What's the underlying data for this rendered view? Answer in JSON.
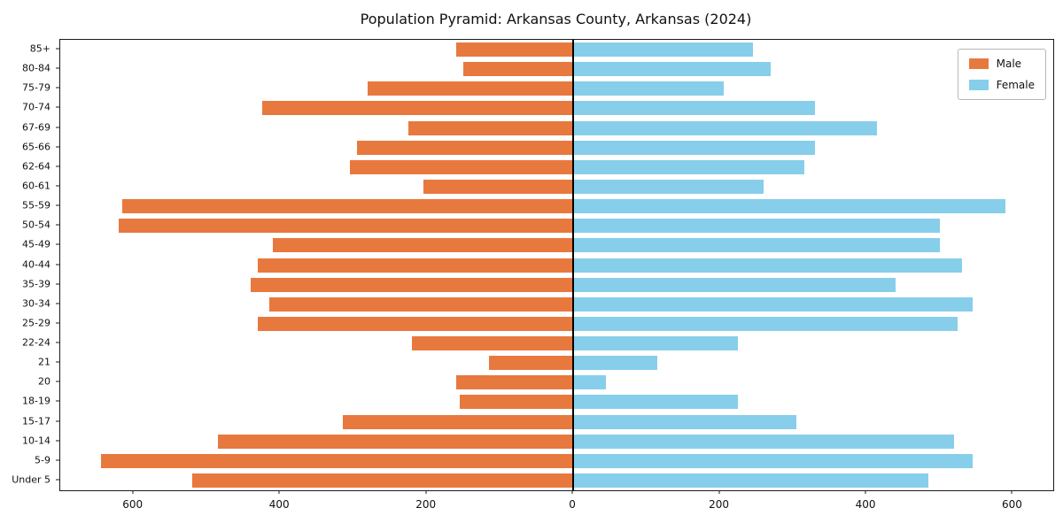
{
  "title": "Population Pyramid: Arkansas County, Arkansas (2024)",
  "legend": {
    "male": "Male",
    "female": "Female"
  },
  "colors": {
    "male": "#e8793e",
    "female": "#87ceeb",
    "axis": "#1a1a1a",
    "background": "#ffffff"
  },
  "chart_data": {
    "type": "bar",
    "subtype": "population-pyramid",
    "title": "Population Pyramid: Arkansas County, Arkansas (2024)",
    "xlabel": "",
    "ylabel": "",
    "grid": false,
    "legend_position": "upper right",
    "categories": [
      "85+",
      "80-84",
      "75-79",
      "70-74",
      "67-69",
      "65-66",
      "62-64",
      "60-61",
      "55-59",
      "50-54",
      "45-49",
      "40-44",
      "35-39",
      "30-34",
      "25-29",
      "22-24",
      "21",
      "20",
      "18-19",
      "15-17",
      "10-14",
      "5-9",
      "Under 5"
    ],
    "series": [
      {
        "name": "Male",
        "side": "left",
        "color": "#e8793e",
        "values": [
          160,
          150,
          280,
          425,
          225,
          295,
          305,
          205,
          615,
          620,
          410,
          430,
          440,
          415,
          430,
          220,
          115,
          160,
          155,
          315,
          485,
          645,
          520
        ]
      },
      {
        "name": "Female",
        "side": "right",
        "color": "#87ceeb",
        "values": [
          245,
          270,
          205,
          330,
          415,
          330,
          315,
          260,
          590,
          500,
          500,
          530,
          440,
          545,
          525,
          225,
          115,
          45,
          225,
          305,
          520,
          545,
          485
        ]
      }
    ],
    "xlim_left": 700,
    "xlim_right": 655,
    "x_tick_values": [
      -600,
      -400,
      -200,
      0,
      200,
      400,
      600
    ],
    "x_tick_labels": [
      "600",
      "400",
      "200",
      "0",
      "200",
      "400",
      "600"
    ]
  }
}
